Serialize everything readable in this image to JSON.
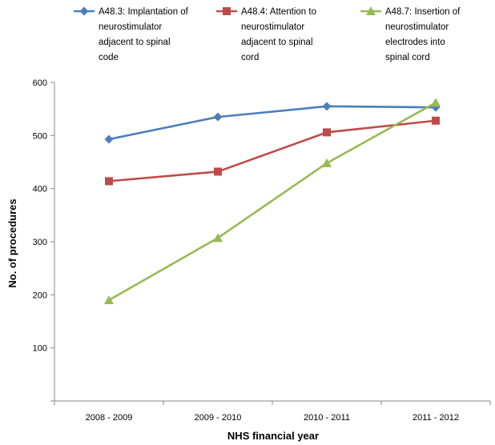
{
  "chart_data": {
    "type": "line",
    "title": "",
    "xlabel": "NHS financial year",
    "ylabel": "No. of procedures",
    "categories": [
      "2008 - 2009",
      "2009 - 2010",
      "2010 - 2011",
      "2011 - 2012"
    ],
    "ylim": [
      0,
      600
    ],
    "yticks": [
      100,
      200,
      300,
      400,
      500,
      600
    ],
    "grid": false,
    "legend_position": "top",
    "series": [
      {
        "name": "A48.3: Implantation of neurostimulator adjacent to spinal code",
        "legend_lines": [
          "A48.3: Implantation of",
          "neurostimulator",
          "adjacent to spinal",
          "code"
        ],
        "values": [
          493,
          535,
          555,
          553
        ],
        "color": "#4a7ebb",
        "marker": "diamond"
      },
      {
        "name": "A48.4: Attention to neurostimulator adjacent to spinal cord",
        "legend_lines": [
          "A48.4: Attention to",
          "neurostimulator",
          "adjacent to spinal",
          "cord"
        ],
        "values": [
          414,
          432,
          506,
          528
        ],
        "color": "#be4b48",
        "marker": "square"
      },
      {
        "name": "A48.7: Insertion of neurostimulator electrodes into spinal cord",
        "legend_lines": [
          "A48.7: Insertion of",
          "neurostimulator",
          "electrodes into",
          "spinal cord"
        ],
        "values": [
          190,
          307,
          448,
          562
        ],
        "color": "#98b954",
        "marker": "triangle"
      }
    ]
  }
}
